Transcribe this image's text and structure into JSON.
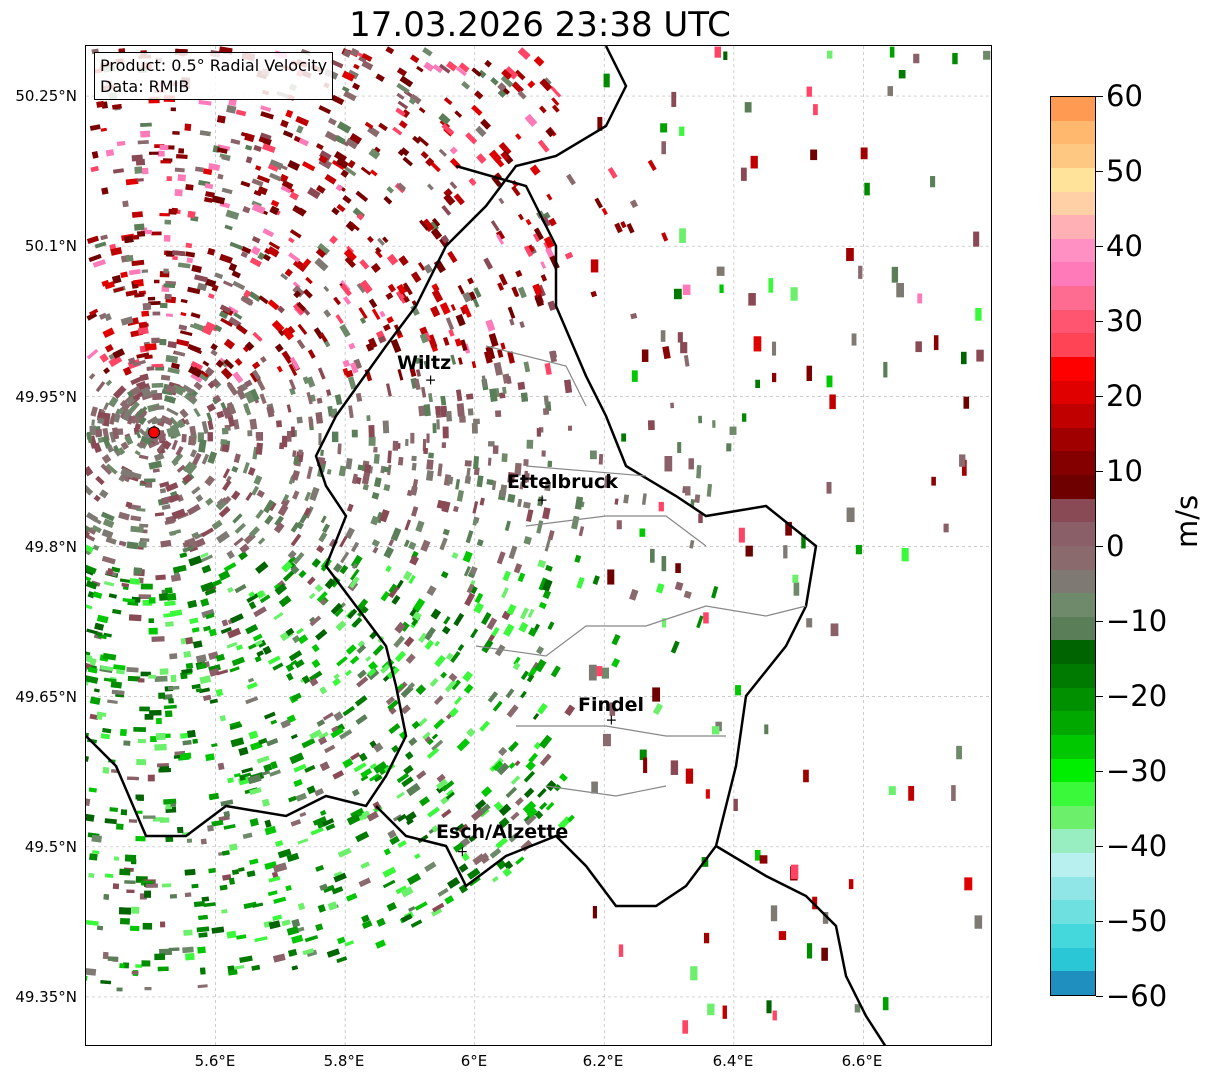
{
  "title": "17.03.2026 23:38 UTC",
  "info": {
    "product": "Product: 0.5° Radial Velocity",
    "source": "Data: RMIB"
  },
  "lat_ticks": [
    "50.25°N",
    "50.1°N",
    "49.95°N",
    "49.8°N",
    "49.65°N",
    "49.5°N",
    "49.35°N"
  ],
  "lon_ticks": [
    "5.6°E",
    "5.8°E",
    "6°E",
    "6.2°E",
    "6.4°E",
    "6.6°E"
  ],
  "cities": [
    {
      "name": "Wiltz",
      "lat": 49.967,
      "lon": 5.932
    },
    {
      "name": "Ettelbruck",
      "lat": 49.847,
      "lon": 6.104
    },
    {
      "name": "Findel",
      "lat": 49.627,
      "lon": 6.211
    },
    {
      "name": "Esch/Alzette",
      "lat": 49.496,
      "lon": 5.981
    }
  ],
  "radar_site": {
    "lat": 49.914,
    "lon": 5.505,
    "color": "#ff0000"
  },
  "map_extent": {
    "lon": [
      5.4,
      6.8
    ],
    "lat": [
      49.3,
      50.3
    ]
  },
  "colorbar": {
    "unit": "m/s",
    "ticks": [
      "60",
      "50",
      "40",
      "30",
      "20",
      "10",
      "0",
      "−10",
      "−20",
      "−30",
      "−40",
      "−50",
      "−60"
    ],
    "range": [
      -60,
      60
    ],
    "colors_top_to_bottom": [
      "#ff9a52",
      "#ffb86e",
      "#ffc882",
      "#ffe39a",
      "#ffd0a6",
      "#ffb0b4",
      "#ff90c4",
      "#ff7ab8",
      "#ff6c92",
      "#ff5570",
      "#ff4455",
      "#ff0000",
      "#e00000",
      "#c00000",
      "#a00000",
      "#840000",
      "#6e0000",
      "#8a4a55",
      "#8a5f68",
      "#8b6a6e",
      "#7e7a73",
      "#6e8a6a",
      "#5a7e58",
      "#006400",
      "#007a00",
      "#009000",
      "#00a800",
      "#00c800",
      "#00ee00",
      "#3af83a",
      "#6cf06c",
      "#98eec0",
      "#b8f0f0",
      "#90e6e6",
      "#6ee0e0",
      "#44d8dc",
      "#2ac8d6",
      "#1f8fc0"
    ]
  }
}
